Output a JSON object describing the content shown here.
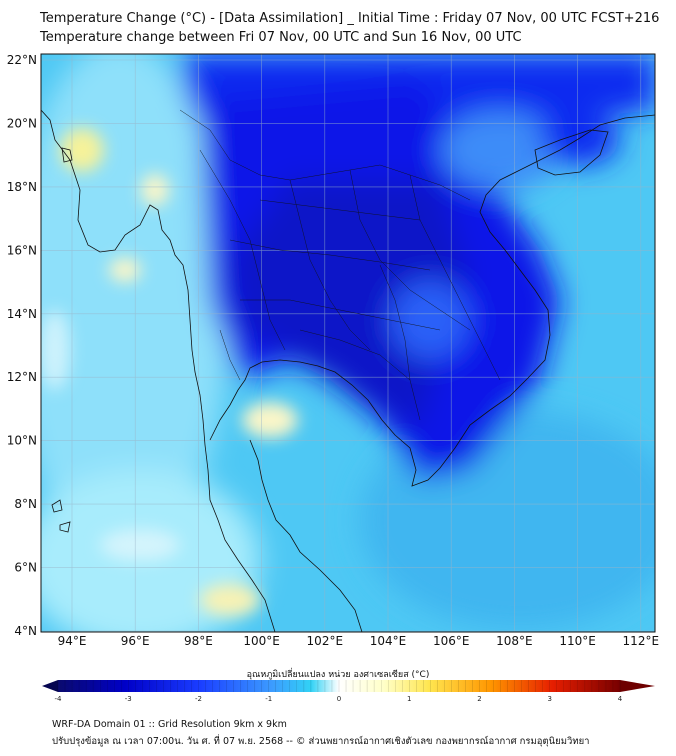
{
  "title": {
    "line1": "Temperature Change (°C) - [Data Assimilation] _ Initial Time : Friday 07 Nov, 00 UTC FCST+216",
    "line2": "Temperature change between Fri 07 Nov, 00 UTC and Sun 16 Nov, 00 UTC"
  },
  "map": {
    "lat_ticks": [
      "22°N",
      "20°N",
      "18°N",
      "16°N",
      "14°N",
      "12°N",
      "10°N",
      "8°N",
      "6°N",
      "4°N"
    ],
    "lon_ticks": [
      "94°E",
      "96°E",
      "98°E",
      "100°E",
      "102°E",
      "104°E",
      "106°E",
      "108°E",
      "110°E",
      "112°E"
    ]
  },
  "colorbar": {
    "title": "อุณหภูมิเปลี่ยนแปลง หน่วย องศาเซลเซียส (°C)",
    "ticks": [
      "-4",
      "-3",
      "-2",
      "-1",
      "0",
      "1",
      "2",
      "3",
      "4"
    ],
    "colors": [
      "#0a0a6e",
      "#0000c8",
      "#1a3cff",
      "#3c78ff",
      "#28c8f0",
      "#c8f5ff",
      "#ffffff",
      "#ffffc8",
      "#ffe650",
      "#ff9600",
      "#e61e00",
      "#780000"
    ]
  },
  "footer": {
    "line1": "WRF-DA Domain 01 :: Grid Resolution 9km x 9km",
    "line2": "ปรับปรุงข้อมูล ณ เวลา 07:00น. วัน ศ. ที่ 07 พ.ย. 2568 -- © ส่วนพยากรณ์อากาศเชิงตัวเลข กองพยากรณ์อากาศ กรมอุตุนิยมวิทยา"
  }
}
